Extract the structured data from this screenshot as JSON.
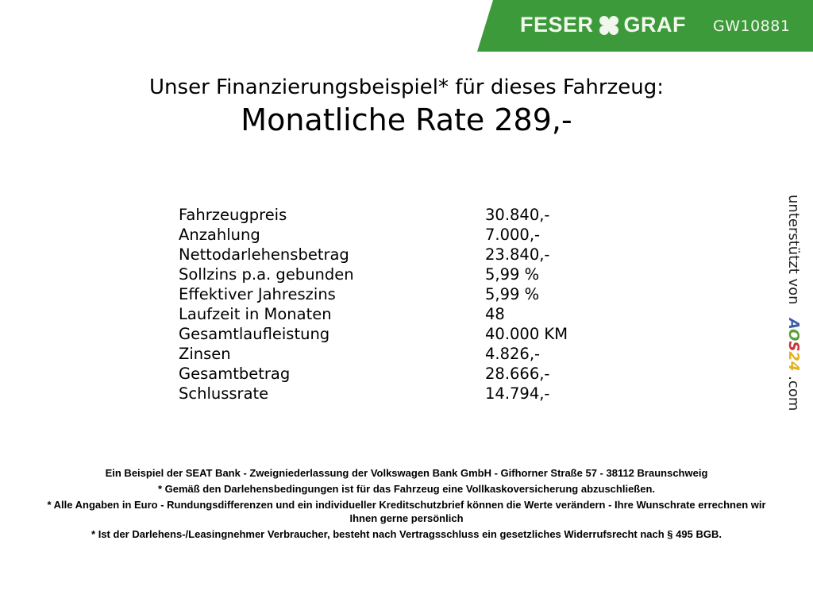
{
  "header": {
    "brand_left": "FESER",
    "brand_right": "GRAF",
    "vehicle_code": "GW10881",
    "brand_color": "#3d9a3b",
    "logo_icon": "cloverleaf-icon"
  },
  "title": "Unser Finanzierungsbeispiel* für dieses Fahrzeug:",
  "monthly_rate": "Monatliche Rate 289,-",
  "details": [
    {
      "label": "Fahrzeugpreis",
      "value": "30.840,-"
    },
    {
      "label": "Anzahlung",
      "value": "7.000,-"
    },
    {
      "label": "Nettodarlehensbetrag",
      "value": "23.840,-"
    },
    {
      "label": "Sollzins p.a. gebunden",
      "value": "5,99 %"
    },
    {
      "label": "Effektiver Jahreszins",
      "value": "5,99 %"
    },
    {
      "label": "Laufzeit in Monaten",
      "value": "48"
    },
    {
      "label": "Gesamtlaufleistung",
      "value": "40.000 KM"
    },
    {
      "label": "Zinsen",
      "value": "4.826,-"
    },
    {
      "label": "Gesamtbetrag",
      "value": "28.666,-"
    },
    {
      "label": "Schlussrate",
      "value": "14.794,-"
    }
  ],
  "side": {
    "text": "unterstützt von",
    "aos": [
      "A",
      "O",
      "S",
      "2",
      "4"
    ],
    "suffix": ".com",
    "aos_colors": [
      "#3b5ea8",
      "#5aa03c",
      "#c8343a",
      "#e2b21f",
      "#e2b21f"
    ]
  },
  "footer": {
    "bank": "Ein Beispiel der SEAT Bank - Zweigniederlassung der Volkswagen Bank GmbH - Gifhorner Straße 57 - 38112 Braunschweig",
    "note1": "* Gemäß den Darlehensbedingungen ist für das Fahrzeug eine Vollkaskoversicherung abzuschließen.",
    "note2": "* Alle Angaben in Euro - Rundungsdifferenzen und ein individueller Kreditschutzbrief können die Werte verändern - Ihre Wunschrate errechnen wir Ihnen gerne persönlich",
    "note3": "* Ist der Darlehens-/Leasingnehmer Verbraucher, besteht nach Vertragsschluss ein gesetzliches Widerrufsrecht nach § 495 BGB."
  }
}
